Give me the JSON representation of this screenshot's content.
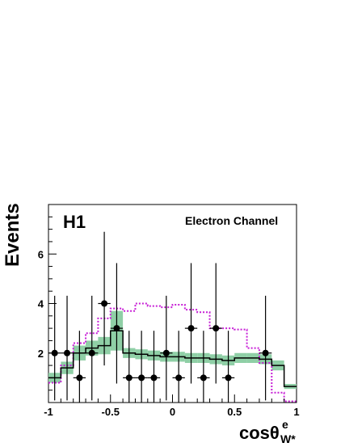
{
  "chart_data": {
    "type": "histogram",
    "experiment_label": "H1",
    "channel_label": "Electron Channel",
    "ylabel": "Events",
    "xlabel": {
      "main": "cosθ",
      "superscript": "e",
      "subscript": "W*"
    },
    "xlim": [
      -1,
      1
    ],
    "ylim": [
      0,
      8
    ],
    "x_ticks": [
      {
        "value": -1,
        "label": "-1"
      },
      {
        "value": -0.5,
        "label": "-0.5"
      },
      {
        "value": 0,
        "label": "0"
      },
      {
        "value": 0.5,
        "label": "0.5"
      },
      {
        "value": 1,
        "label": "1"
      }
    ],
    "y_ticks": [
      {
        "value": 2,
        "label": "2"
      },
      {
        "value": 4,
        "label": "4"
      },
      {
        "value": 6,
        "label": "6"
      }
    ],
    "bin_edges": [
      -1.0,
      -0.9,
      -0.8,
      -0.7,
      -0.6,
      -0.5,
      -0.4,
      -0.3,
      -0.2,
      -0.1,
      0.0,
      0.1,
      0.2,
      0.3,
      0.4,
      0.5,
      0.6,
      0.7,
      0.8,
      0.9,
      1.0
    ],
    "sm_prediction": {
      "values": [
        1.0,
        1.4,
        2.0,
        2.2,
        2.3,
        2.9,
        2.0,
        1.95,
        1.9,
        1.85,
        1.85,
        1.8,
        1.8,
        1.75,
        1.7,
        1.8,
        1.8,
        1.75,
        1.5,
        0.65
      ],
      "uncertainty": [
        0.2,
        0.25,
        0.3,
        0.3,
        0.35,
        0.8,
        0.2,
        0.2,
        0.2,
        0.2,
        0.2,
        0.2,
        0.2,
        0.2,
        0.2,
        0.2,
        0.2,
        0.2,
        0.2,
        0.1
      ],
      "line_color": "#000000",
      "band_color": "#8fcfa6"
    },
    "alternative_model": {
      "values": [
        0.8,
        1.5,
        2.4,
        2.8,
        3.4,
        3.8,
        3.7,
        4.0,
        3.9,
        3.85,
        3.95,
        3.75,
        3.65,
        3.0,
        3.0,
        2.95,
        2.2,
        1.6,
        0.4,
        0.05
      ],
      "color": "#c71fd6"
    },
    "data_points": {
      "x": [
        -0.95,
        -0.85,
        -0.75,
        -0.65,
        -0.55,
        -0.45,
        -0.35,
        -0.25,
        -0.15,
        -0.05,
        0.05,
        0.15,
        0.25,
        0.35,
        0.45,
        0.55,
        0.65,
        0.75,
        0.85
      ],
      "y": [
        2,
        2,
        1,
        2,
        4,
        3,
        1,
        1,
        1,
        2,
        1,
        3,
        1,
        3,
        1,
        0,
        0,
        2,
        0
      ],
      "color": "#000000"
    }
  }
}
